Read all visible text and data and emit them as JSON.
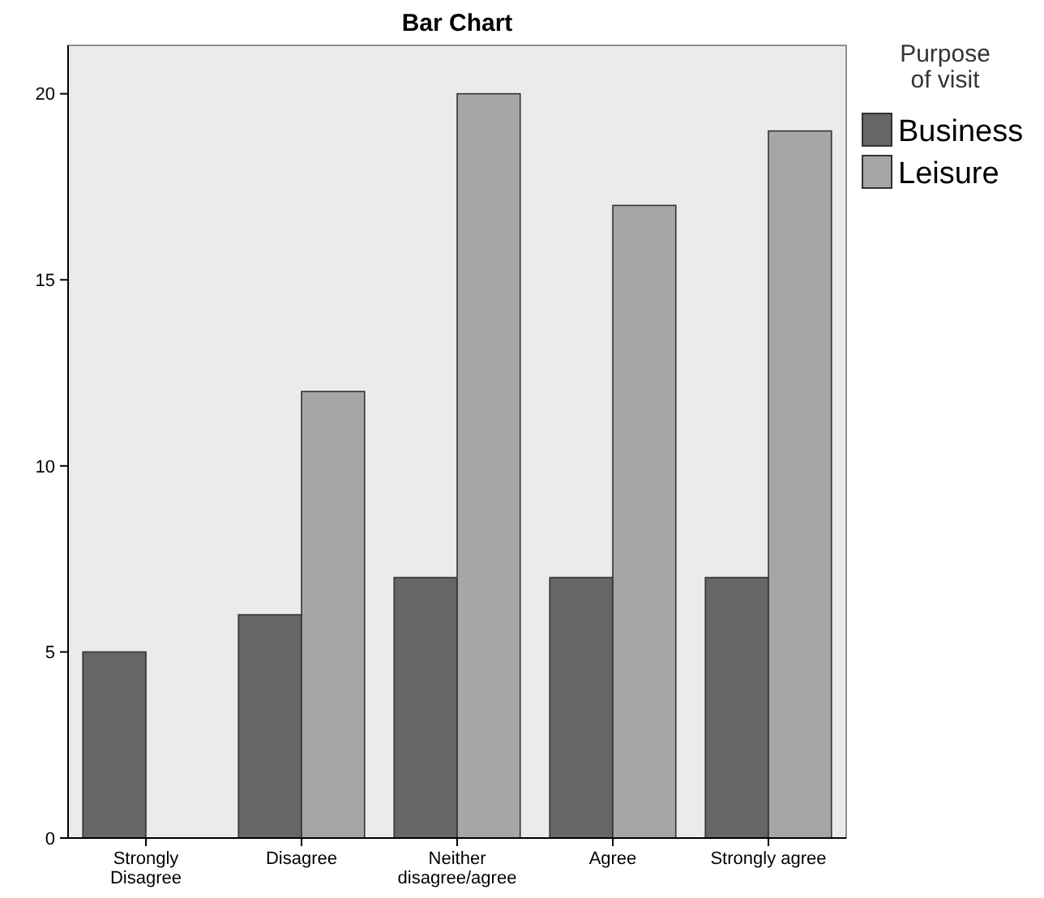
{
  "chart_data": {
    "type": "bar",
    "title": "Bar Chart",
    "categories": [
      "Strongly Disagree",
      "Disagree",
      "Neither disagree/agree",
      "Agree",
      "Strongly agree"
    ],
    "series": [
      {
        "name": "Business",
        "color": "#666666",
        "values": [
          5,
          6,
          7,
          7,
          7
        ]
      },
      {
        "name": "Leisure",
        "color": "#a6a6a6",
        "values": [
          null,
          12,
          20,
          17,
          19
        ]
      }
    ],
    "ylim": [
      0,
      21.3
    ],
    "yticks": [
      0,
      5,
      10,
      15,
      20
    ],
    "grid": false,
    "legend": "top right",
    "legend_title": "Purpose of visit"
  }
}
